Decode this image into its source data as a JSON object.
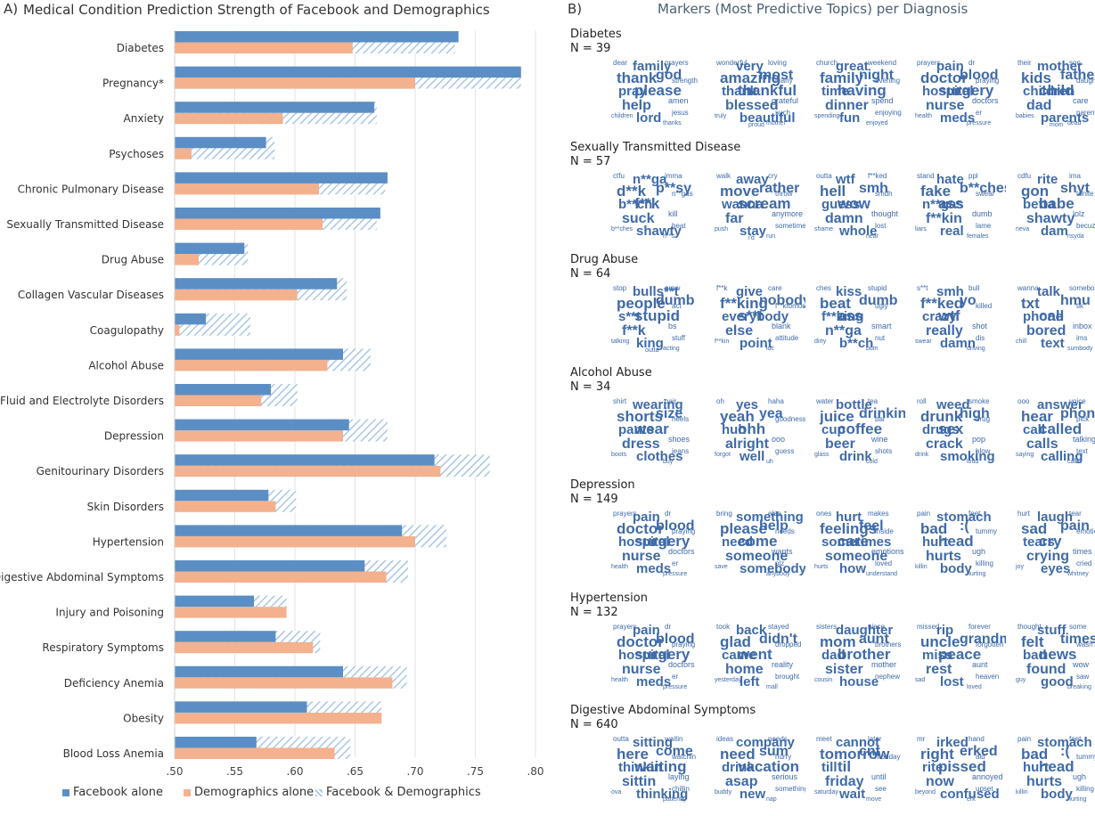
{
  "panel_a": {
    "letter": "A)",
    "title": "Medical Condition Prediction Strength of Facebook and Demographics"
  },
  "panel_b": {
    "letter": "B)",
    "title": "Markers (Most Predictive Topics) per Diagnosis",
    "sections": [
      {
        "name": "Diabetes",
        "n": "N = 39",
        "clouds": [
          [
            "family",
            "thank",
            "god",
            "pray",
            "please",
            "help",
            "lord",
            "dear",
            "prayers",
            "amen",
            "jesus",
            "children",
            "strength",
            "thanks"
          ],
          [
            "very",
            "amazing",
            "most",
            "thank",
            "thankful",
            "blessed",
            "beautiful",
            "wonderful",
            "loving",
            "grateful",
            "such",
            "truly",
            "many",
            "mother",
            "proud"
          ],
          [
            "great",
            "family",
            "night",
            "time",
            "having",
            "dinner",
            "fun",
            "church",
            "weekend",
            "spend",
            "enjoying",
            "spending",
            "evening",
            "enjoyed"
          ],
          [
            "pain",
            "doctor",
            "blood",
            "hospital",
            "surgery",
            "nurse",
            "meds",
            "prayers",
            "dr",
            "doctors",
            "er",
            "health",
            "praying",
            "pressure"
          ],
          [
            "mother",
            "kids",
            "father",
            "children",
            "child",
            "dad",
            "parents",
            "their",
            "son",
            "care",
            "parent",
            "babies",
            "daughter",
            "dead",
            "mom"
          ]
        ]
      },
      {
        "name": "Sexually Transmitted Disease",
        "n": "N = 57",
        "clouds": [
          [
            "n**ga",
            "d**k",
            "p**sy",
            "b**ch",
            "f**k",
            "suck",
            "shawty",
            "ctfu",
            "imma",
            "kill",
            "beat",
            "b**ches",
            "n**gas",
            "h**s"
          ],
          [
            "away",
            "move",
            "rather",
            "wanna",
            "scream",
            "far",
            "stay",
            "walk",
            "cry",
            "anymore",
            "sometimes",
            "push",
            "throw",
            "run",
            "i'd"
          ],
          [
            "wtf",
            "hell",
            "smh",
            "guess",
            "wow",
            "damn",
            "whole",
            "outta",
            "f**ked",
            "thought",
            "lost",
            "shame",
            "smdh",
            "near"
          ],
          [
            "hate",
            "fake",
            "b**ches",
            "n**gas",
            "ass",
            "f**kin",
            "real",
            "stand",
            "ppl",
            "dumb",
            "lame",
            "liars",
            "swear",
            "females"
          ],
          [
            "rite",
            "gon",
            "shyt",
            "betta",
            "babe",
            "shawty",
            "dam",
            "cdfu",
            "ima",
            "lolz",
            "becuz",
            "neva",
            "tonite",
            "nsyda"
          ]
        ]
      },
      {
        "name": "Drug Abuse",
        "n": "N = 64",
        "clouds": [
          [
            "bulls**t",
            "people",
            "dumb",
            "s**t",
            "stupid",
            "f**k",
            "king",
            "stop",
            "grow",
            "bs",
            "stuff",
            "talking",
            "act",
            "acting",
            "outta"
          ],
          [
            "give",
            "f**king",
            "nobody",
            "everybody",
            "s**t",
            "else",
            "point",
            "f**k",
            "care",
            "blank",
            "attitude",
            "f**kin",
            "f**kfomore",
            "idc"
          ],
          [
            "kiss",
            "beat",
            "dumb",
            "f**king",
            "ass",
            "n**ga",
            "b**ch",
            "ches",
            "stupid",
            "smart",
            "nut",
            "dirty",
            "ugly",
            "bum"
          ],
          [
            "smh",
            "f**ked",
            "yo",
            "crazy",
            "wtf",
            "really",
            "damn",
            "s**t",
            "bull",
            "shot",
            "dis",
            "swear",
            "killed",
            "driving"
          ],
          [
            "talk",
            "txt",
            "hmu",
            "phone",
            "call",
            "bored",
            "text",
            "wanna",
            "somebody",
            "inbox",
            "ims",
            "chill",
            "tlk",
            "sumbody"
          ]
        ]
      },
      {
        "name": "Alcohol Abuse",
        "n": "N = 34",
        "clouds": [
          [
            "wearing",
            "shorts",
            "size",
            "pants",
            "wear",
            "dress",
            "clothes",
            "shirt",
            "pair",
            "shoes",
            "jeans",
            "boots",
            "heels",
            "buy"
          ],
          [
            "yes",
            "yeah",
            "yea",
            "huh",
            "ohh",
            "alright",
            "well",
            "oh",
            "haha",
            "ooo",
            "guess",
            "forgot",
            "goodness",
            "uh"
          ],
          [
            "bottle",
            "juice",
            "drinking",
            "cup",
            "coffee",
            "beer",
            "drink",
            "water",
            "tea",
            "wine",
            "shots",
            "glass",
            "bar",
            "cold"
          ],
          [
            "weed",
            "drunk",
            "high",
            "drugs",
            "sex",
            "crack",
            "smoking",
            "roll",
            "smoke",
            "pop",
            "blow",
            "drink",
            "drug",
            "loud"
          ],
          [
            "answer",
            "hear",
            "phone",
            "call",
            "called",
            "calls",
            "calling",
            "ooo",
            "voice",
            "talking",
            "text",
            "saying",
            "pick",
            "callin"
          ]
        ]
      },
      {
        "name": "Depression",
        "n": "N = 149",
        "clouds": [
          [
            "pain",
            "doctor",
            "blood",
            "hospital",
            "surgery",
            "nurse",
            "meds",
            "prayers",
            "dr",
            "doctors",
            "er",
            "health",
            "praying",
            "pressure"
          ],
          [
            "something",
            "please",
            "help",
            "need",
            "come",
            "someone",
            "somebody",
            "bring",
            "else",
            "wants",
            "plz",
            "save",
            "needs",
            "anybody"
          ],
          [
            "hurt",
            "feelings",
            "feel",
            "sometimes",
            "care",
            "someone",
            "how",
            "ones",
            "makes",
            "emotions",
            "loved",
            "hurts",
            "inside",
            "understand"
          ],
          [
            "stomach",
            "bad",
            ":(",
            "hurt",
            "head",
            "hurts",
            "body",
            "pain",
            "feet",
            "ugh",
            "killing",
            "killin",
            "tummy",
            "hurting"
          ],
          [
            "laugh",
            "sad",
            "pain",
            "tears",
            "cry",
            "crying",
            "eyes",
            "hurt",
            "tear",
            "times",
            "cried",
            "joy",
            "emotional",
            "whitney"
          ]
        ]
      },
      {
        "name": "Hypertension",
        "n": "N = 132",
        "clouds": [
          [
            "pain",
            "doctor",
            "blood",
            "hospital",
            "surgery",
            "nurse",
            "meds",
            "prayers",
            "dr",
            "doctors",
            "er",
            "health",
            "praying",
            "pressure"
          ],
          [
            "back",
            "glad",
            "didn't",
            "came",
            "went",
            "home",
            "left",
            "took",
            "stayed",
            "reality",
            "brought",
            "yesterday",
            "dropped",
            "mall"
          ],
          [
            "daughter",
            "mom",
            "aunt",
            "dad",
            "brother",
            "sister",
            "house",
            "sisters",
            "niece",
            "mother",
            "nephew",
            "cousin",
            "brothers"
          ],
          [
            "rip",
            "uncle",
            "grandma",
            "miss",
            "peace",
            "rest",
            "lost",
            "missed",
            "forever",
            "aunt",
            "heaven",
            "sad",
            "forgotten",
            "loved"
          ],
          [
            "stuff",
            "felt",
            "times",
            "bad",
            "news",
            "found",
            "good",
            "thought",
            "some",
            "wow",
            "saw",
            "guy",
            "wasn't",
            "breaking"
          ]
        ]
      },
      {
        "name": "Digestive Abdominal Symptoms",
        "n": "N = 640",
        "clouds": [
          [
            "sitting",
            "here",
            "come",
            "thinkin",
            "waiting",
            "sittin",
            "thinking",
            "outta",
            "waitin",
            "laying",
            "chillin",
            "ova",
            "watchin",
            "patiently"
          ],
          [
            "company",
            "need",
            "sum",
            "drink",
            "vacation",
            "asap",
            "new",
            "ideas",
            "needs",
            "serious",
            "something",
            "buddy",
            "hurry",
            "nap"
          ],
          [
            "cannot",
            "tomorrow",
            "cnt",
            "till",
            "til",
            "friday",
            "wait",
            "meet",
            "later",
            "until",
            "see",
            "saturday",
            "monday",
            "move"
          ],
          [
            "irked",
            "right",
            "erked",
            "rite",
            "pissed",
            "now",
            "confused",
            "mr",
            "hand",
            "annoyed",
            "upset",
            "beyond",
            "aid",
            "erk"
          ],
          [
            "stomach",
            "bad",
            ":(",
            "hurt",
            "head",
            "hurts",
            "body",
            "pain",
            "feet",
            "ugh",
            "killing",
            "killin",
            "tummy",
            "hurting"
          ]
        ]
      }
    ]
  },
  "chart_data": {
    "type": "bar",
    "orientation": "horizontal",
    "title": "Medical Condition Prediction Strength of Facebook and Demographics",
    "categories": [
      "Diabetes",
      "Pregnancy*",
      "Anxiety",
      "Psychoses",
      "Chronic Pulmonary Disease",
      "Sexually Transmitted Disease",
      "Drug Abuse",
      "Collagen Vascular Diseases",
      "Coagulopathy",
      "Alcohol Abuse",
      "Fluid and Electrolyte Disorders",
      "Depression",
      "Genitourinary Disorders",
      "Skin Disorders",
      "Hypertension",
      "Digestive Abdominal Symptoms",
      "Injury and Poisoning",
      "Respiratory Symptoms",
      "Deficiency Anemia",
      "Obesity",
      "Blood Loss Anemia"
    ],
    "series": [
      {
        "name": "Facebook alone",
        "color": "#5b8ec4",
        "values": [
          0.736,
          0.788,
          0.666,
          0.576,
          0.677,
          0.671,
          0.558,
          0.635,
          0.526,
          0.64,
          0.58,
          0.645,
          0.716,
          0.578,
          0.689,
          0.658,
          0.566,
          0.584,
          0.64,
          0.61,
          0.568
        ]
      },
      {
        "name": "Demographics alone",
        "color": "#f3b18e",
        "values": [
          0.648,
          0.7,
          0.59,
          0.514,
          0.62,
          0.623,
          0.52,
          0.602,
          0.504,
          0.627,
          0.572,
          0.64,
          0.721,
          0.584,
          0.7,
          0.676,
          0.593,
          0.615,
          0.681,
          0.672,
          0.633
        ]
      },
      {
        "name": "Facebook & Demographics",
        "color": "#a9c6e6",
        "pattern": "hatched",
        "values": [
          0.733,
          0.788,
          0.668,
          0.583,
          0.675,
          0.668,
          0.561,
          0.643,
          0.563,
          0.663,
          0.602,
          0.677,
          0.762,
          0.601,
          0.726,
          0.694,
          0.593,
          0.621,
          0.693,
          0.672,
          0.646
        ]
      }
    ],
    "xlim": [
      0.5,
      0.8
    ],
    "xticks": [
      ".50",
      ".55",
      ".60",
      ".65",
      ".70",
      ".75",
      ".80"
    ],
    "grid": true,
    "legend": "bottom"
  }
}
